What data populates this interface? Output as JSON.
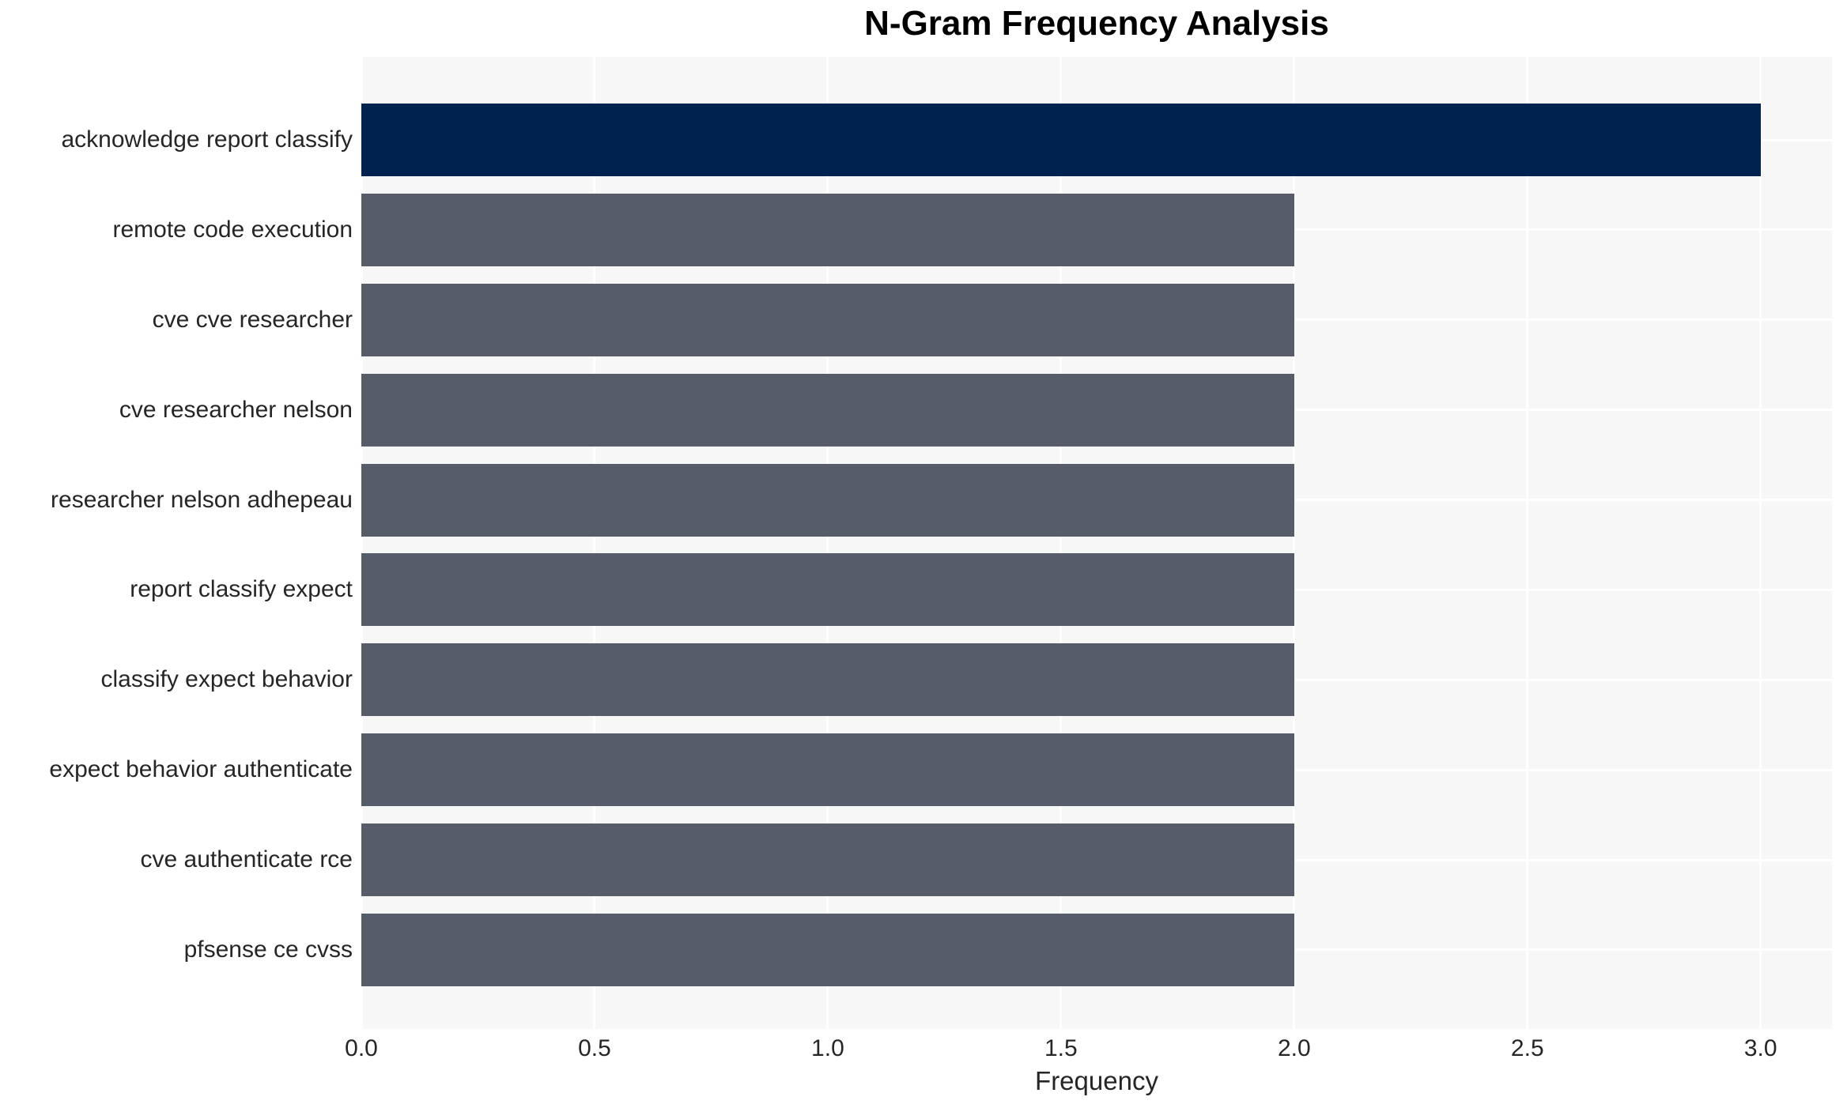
{
  "chart_data": {
    "type": "bar",
    "orientation": "horizontal",
    "title": "N-Gram Frequency Analysis",
    "xlabel": "Frequency",
    "ylabel": "",
    "categories": [
      "acknowledge report classify",
      "remote code execution",
      "cve cve researcher",
      "cve researcher nelson",
      "researcher nelson adhepeau",
      "report classify expect",
      "classify expect behavior",
      "expect behavior authenticate",
      "cve authenticate rce",
      "pfsense ce cvss"
    ],
    "values": [
      3,
      2,
      2,
      2,
      2,
      2,
      2,
      2,
      2,
      2
    ],
    "bar_colors": [
      "#00224e",
      "#575c69",
      "#575c69",
      "#575c69",
      "#575c69",
      "#575c69",
      "#575c69",
      "#575c69",
      "#575c69",
      "#575c69"
    ],
    "xticks": [
      0.0,
      0.5,
      1.0,
      1.5,
      2.0,
      2.5,
      3.0
    ],
    "xtick_labels": [
      "0.0",
      "0.5",
      "1.0",
      "1.5",
      "2.0",
      "2.5",
      "3.0"
    ],
    "xlim": [
      0,
      3.153
    ],
    "grid": true,
    "grid_color": "#ffffff",
    "plot_bg_color": "#f7f7f8",
    "text_color": "#262626",
    "title_color": "#000000",
    "legend": false
  }
}
